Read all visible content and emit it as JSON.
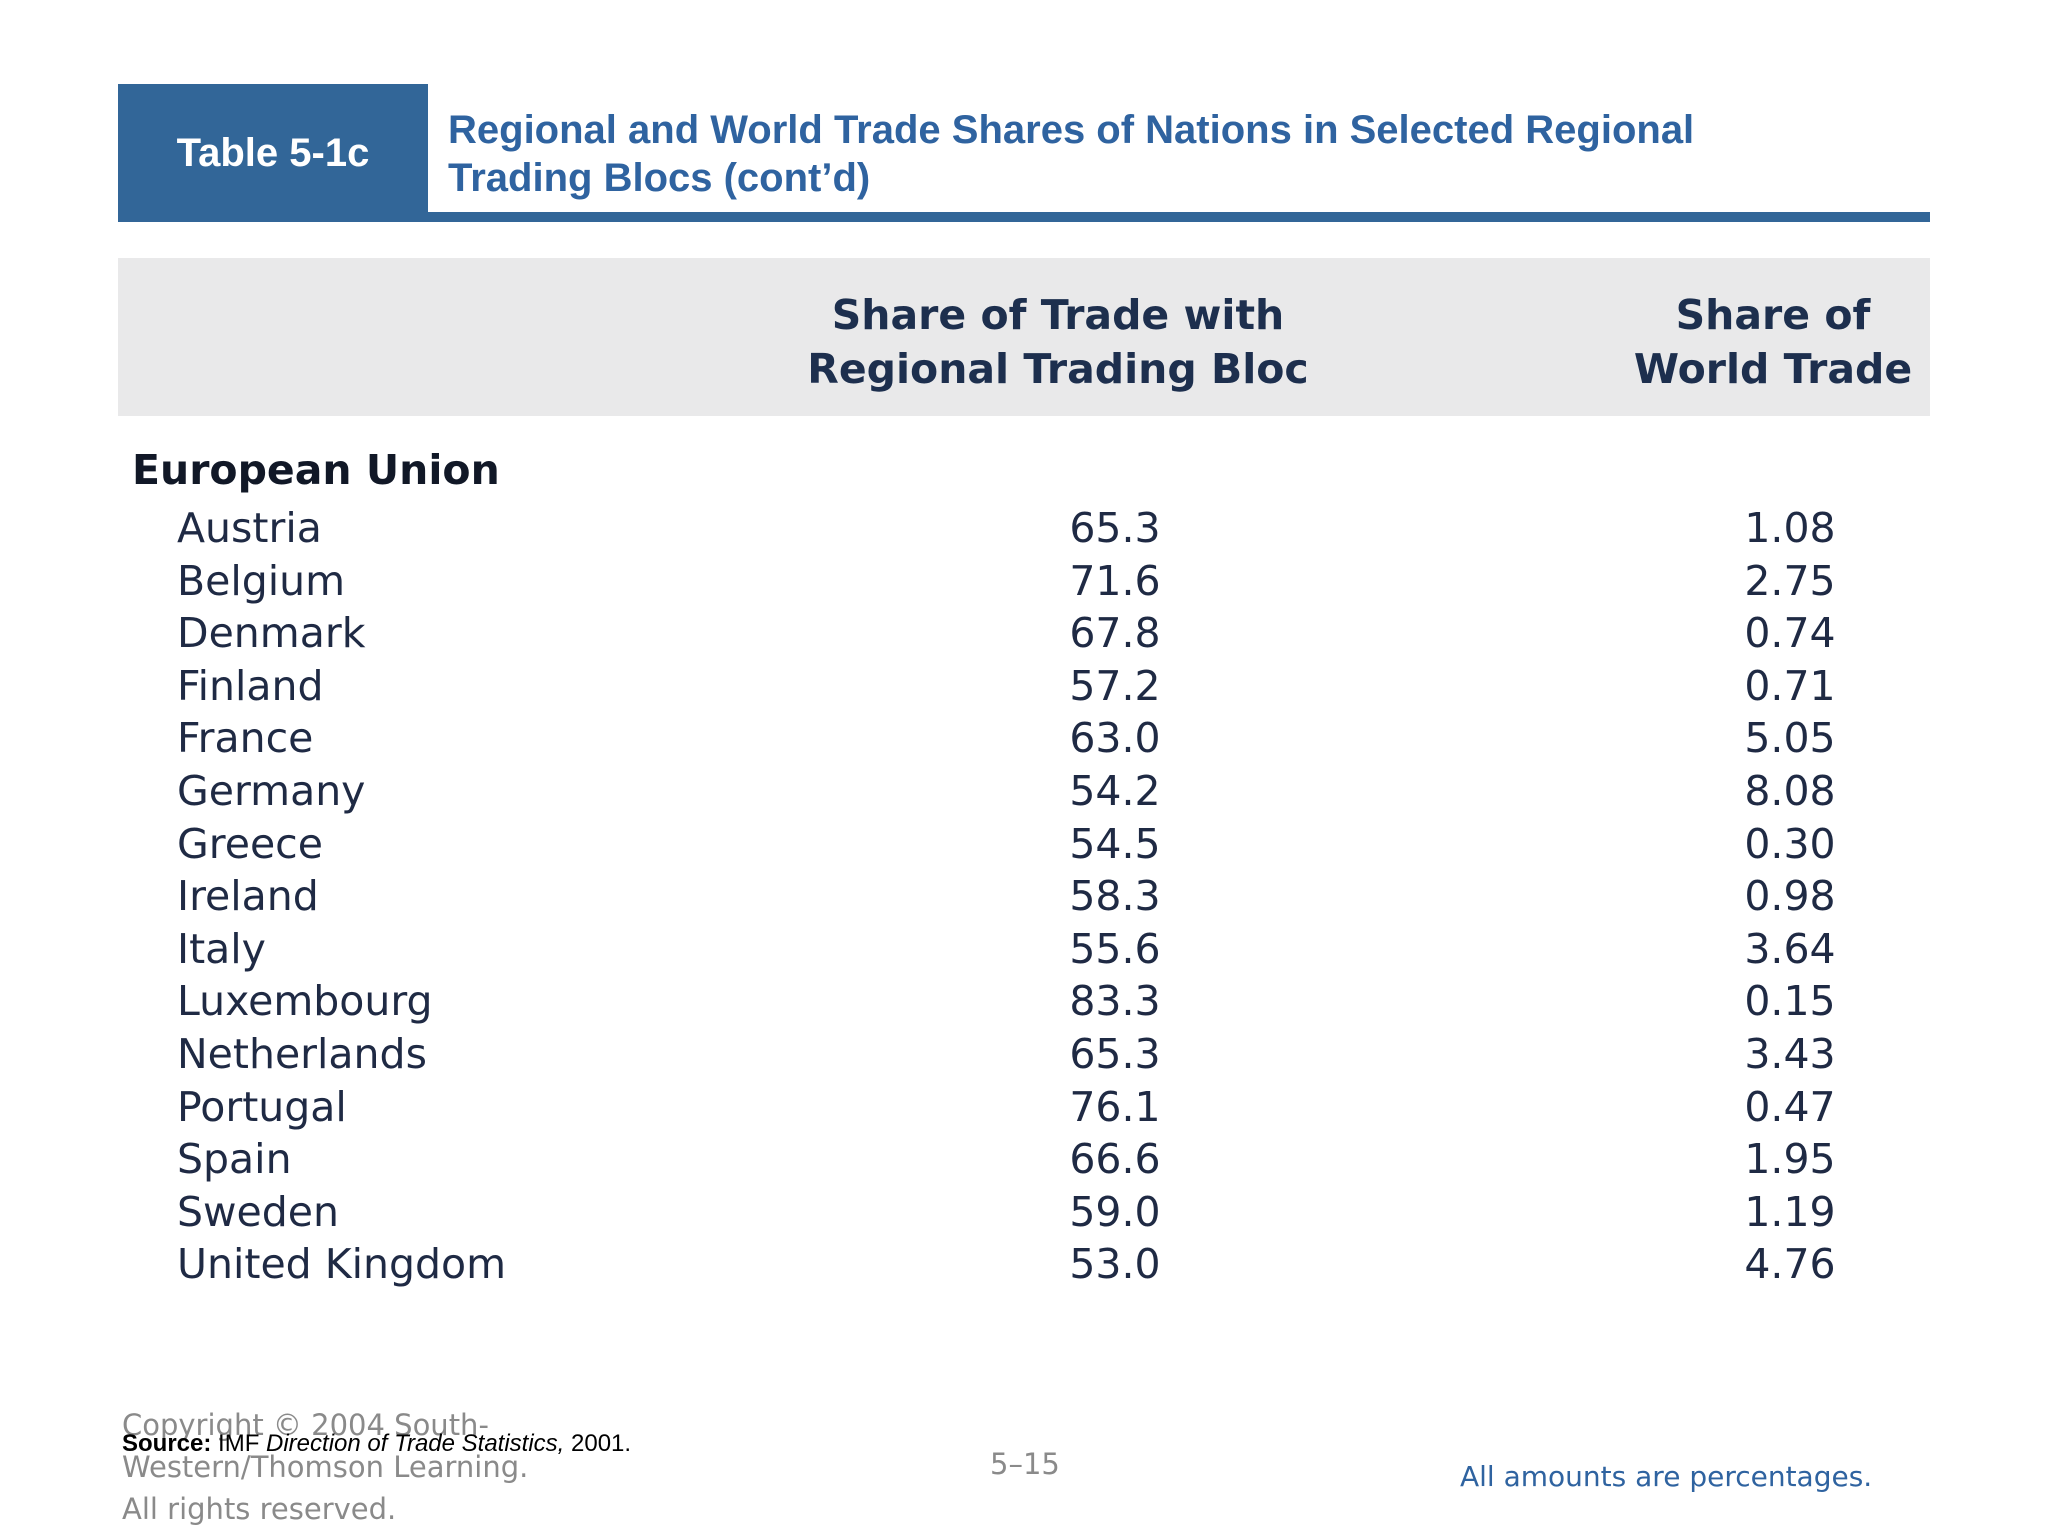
{
  "table_label": "Table 5-1c",
  "title_line1": "Regional and World Trade Shares of Nations in Selected Regional",
  "title_line2": "Trading Blocs (cont’d)",
  "columns": {
    "bloc_line1": "Share of Trade with",
    "bloc_line2": "Regional Trading Bloc",
    "world_line1": "Share of",
    "world_line2": "World Trade"
  },
  "group": "European Union",
  "rows": [
    {
      "country": "Austria",
      "bloc": "65.3",
      "world": "1.08"
    },
    {
      "country": "Belgium",
      "bloc": "71.6",
      "world": "2.75"
    },
    {
      "country": "Denmark",
      "bloc": "67.8",
      "world": "0.74"
    },
    {
      "country": "Finland",
      "bloc": "57.2",
      "world": "0.71"
    },
    {
      "country": "France",
      "bloc": "63.0",
      "world": "5.05"
    },
    {
      "country": "Germany",
      "bloc": "54.2",
      "world": "8.08"
    },
    {
      "country": "Greece",
      "bloc": "54.5",
      "world": "0.30"
    },
    {
      "country": "Ireland",
      "bloc": "58.3",
      "world": "0.98"
    },
    {
      "country": "Italy",
      "bloc": "55.6",
      "world": "3.64"
    },
    {
      "country": "Luxembourg",
      "bloc": "83.3",
      "world": "0.15"
    },
    {
      "country": "Netherlands",
      "bloc": "65.3",
      "world": "3.43"
    },
    {
      "country": "Portugal",
      "bloc": "76.1",
      "world": "0.47"
    },
    {
      "country": "Spain",
      "bloc": "66.6",
      "world": "1.95"
    },
    {
      "country": "Sweden",
      "bloc": "59.0",
      "world": "1.19"
    },
    {
      "country": "United Kingdom",
      "bloc": "53.0",
      "world": "4.76"
    }
  ],
  "footer": {
    "copyright_line1": "Copyright © 2004 South-",
    "copyright_line2": "Western/Thomson Learning.",
    "copyright_line3": "All rights reserved.",
    "source_label": "Source:",
    "source_org": " IMF ",
    "source_title": "Direction of Trade Statistics,",
    "source_year": " 2001.",
    "page_number": "5–15",
    "note": "All amounts are percentages."
  },
  "colors": {
    "accent": "#326698",
    "title_text": "#2f63a0",
    "header_bg": "#e9e9ea"
  }
}
